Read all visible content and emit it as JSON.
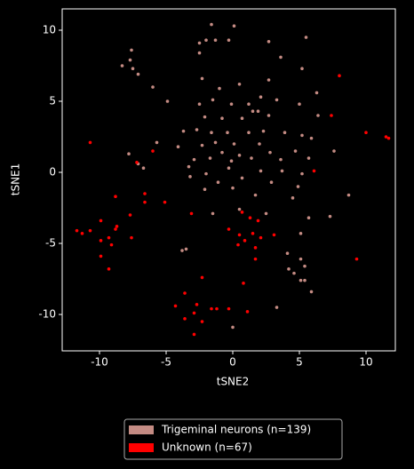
{
  "chart_data": {
    "type": "scatter",
    "xlabel": "tSNE2",
    "ylabel": "tSNE1",
    "xlim": [
      -12.8,
      12.2
    ],
    "ylim": [
      -12.56,
      11.5
    ],
    "xticks": [
      -10,
      -5,
      0,
      5,
      10
    ],
    "yticks": [
      -10,
      -5,
      0,
      5,
      10
    ],
    "grid": false,
    "legend": "bottom",
    "series": [
      {
        "name": "Trigeminal neurons (n=139)",
        "color": "#c48b83",
        "x": [
          -1.6,
          0.1,
          -2.5,
          -2.0,
          -1.3,
          -0.3,
          2.7,
          5.5,
          -7.6,
          -7.7,
          -8.3,
          -7.5,
          -7.1,
          3.6,
          -2.5,
          -2.3,
          2.7,
          5.2,
          6.3,
          -6.0,
          -1.0,
          0.5,
          2.1,
          -4.9,
          -1.5,
          -2.5,
          -0.1,
          3.3,
          5.0,
          1.2,
          1.5,
          1.9,
          -2.1,
          -0.8,
          0.7,
          2.7,
          6.4,
          -3.7,
          -2.7,
          -1.6,
          -0.4,
          1.2,
          2.3,
          3.9,
          5.2,
          -1.3,
          0.1,
          2.0,
          -2.3,
          5.9,
          -4.1,
          -5.7,
          -0.8,
          0.5,
          2.8,
          4.7,
          7.6,
          -2.9,
          -1.7,
          -0.1,
          1.4,
          3.6,
          5.7,
          -7.8,
          -7.1,
          -6.7,
          -3.3,
          -2.0,
          -0.3,
          2.1,
          3.7,
          5.2,
          -3.2,
          -1.1,
          0.7,
          2.9,
          4.9,
          -2.1,
          0.0,
          1.7,
          4.5,
          8.7,
          -1.5,
          2.5,
          5.7,
          7.3,
          0.5,
          5.1,
          -3.8,
          -3.5,
          4.1,
          5.1,
          5.4,
          4.2,
          5.1,
          5.4,
          4.6,
          5.9,
          3.3,
          0.0
        ],
        "values": [
          10.4,
          10.3,
          9.1,
          9.3,
          9.3,
          9.3,
          9.2,
          9.5,
          8.6,
          7.9,
          7.5,
          7.3,
          6.9,
          8.1,
          8.4,
          6.6,
          6.5,
          7.3,
          5.6,
          6.0,
          5.9,
          6.2,
          5.3,
          5.0,
          5.1,
          4.8,
          4.8,
          5.1,
          4.8,
          4.8,
          4.3,
          4.3,
          3.9,
          3.8,
          3.8,
          4.0,
          4.0,
          2.9,
          3.0,
          2.8,
          2.8,
          2.8,
          2.9,
          2.8,
          2.6,
          2.1,
          2.0,
          2.0,
          1.9,
          2.4,
          1.8,
          2.1,
          1.4,
          1.2,
          1.4,
          1.5,
          1.5,
          0.9,
          1.0,
          0.8,
          1.0,
          0.9,
          1.0,
          1.3,
          0.6,
          0.3,
          0.4,
          -0.1,
          0.3,
          0.1,
          0.1,
          -0.1,
          -0.3,
          -0.7,
          -0.4,
          -0.7,
          -1.0,
          -1.2,
          -1.1,
          -1.6,
          -1.8,
          -1.6,
          -2.9,
          -2.9,
          -3.2,
          -3.1,
          -2.6,
          -4.3,
          -5.5,
          -5.4,
          -5.7,
          -6.1,
          -6.6,
          -6.8,
          -7.6,
          -7.6,
          -7.1,
          -8.4,
          -9.5,
          -10.9
        ]
      },
      {
        "name": "Unknown (n=67)",
        "color": "#ff0000",
        "x": [
          -10.7,
          -11.7,
          -11.3,
          -9.9,
          -9.9,
          -9.9,
          -9.1,
          -9.3,
          -8.8,
          -8.7,
          -8.8,
          -9.3,
          -7.6,
          -7.7,
          -6.6,
          -6.6,
          -7.2,
          -6.0,
          -10.7,
          -5.1,
          -3.1,
          -2.3,
          -3.6,
          -4.3,
          -3.6,
          -2.9,
          -2.7,
          -2.9,
          -2.3,
          -1.6,
          -1.2,
          -0.3,
          1.1,
          0.8,
          -0.3,
          0.7,
          1.3,
          0.5,
          0.4,
          0.9,
          1.5,
          1.7,
          1.9,
          2.1,
          1.7,
          3.1,
          6.1,
          8.0,
          7.4,
          10.0,
          11.5,
          11.7,
          9.3
        ],
        "values": [
          -4.1,
          -4.1,
          -4.3,
          -4.8,
          -3.4,
          -5.9,
          -5.1,
          -4.6,
          -4.0,
          -3.8,
          -1.7,
          -6.8,
          -4.6,
          -3.0,
          -1.5,
          -2.1,
          0.7,
          1.5,
          2.1,
          -2.1,
          -2.9,
          -7.4,
          -8.5,
          -9.4,
          -10.3,
          -9.9,
          -9.3,
          -11.4,
          -10.5,
          -9.6,
          -9.6,
          -9.6,
          -9.8,
          -7.8,
          -4.0,
          -2.8,
          -3.2,
          -4.4,
          -5.1,
          -4.8,
          -4.3,
          -5.3,
          -3.4,
          -4.6,
          -6.1,
          -4.4,
          0.1,
          6.8,
          4.0,
          2.8,
          2.5,
          2.4,
          -6.1
        ]
      }
    ]
  }
}
